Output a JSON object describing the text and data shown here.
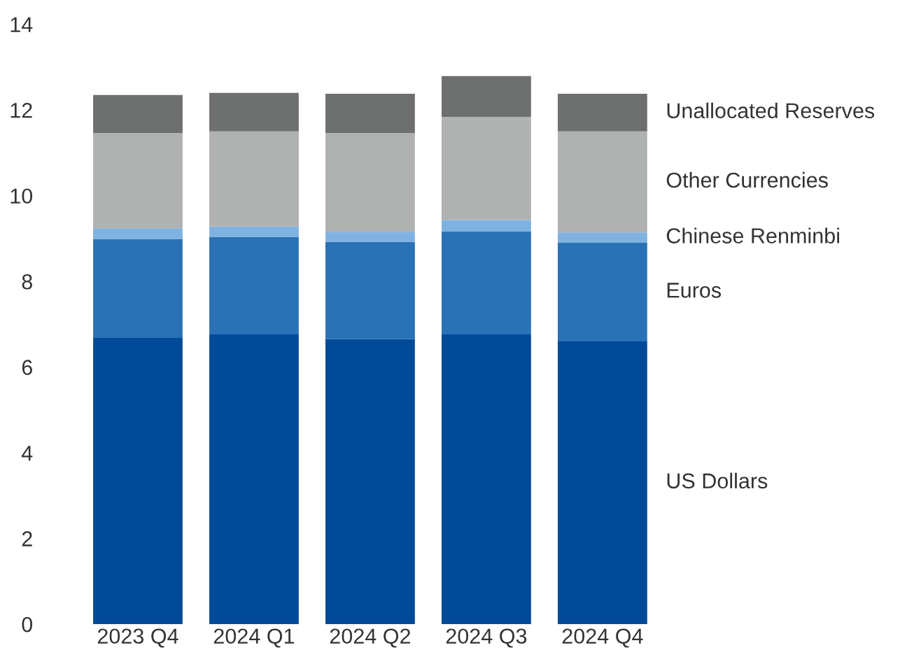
{
  "chart_data": {
    "type": "bar",
    "stacked": true,
    "categories": [
      "2023 Q4",
      "2024 Q1",
      "2024 Q2",
      "2024 Q3",
      "2024 Q4"
    ],
    "series": [
      {
        "name": "US Dollars",
        "color": "#004a98",
        "values": [
          6.68,
          6.76,
          6.65,
          6.76,
          6.6
        ]
      },
      {
        "name": "Euros",
        "color": "#2a72b5",
        "values": [
          2.31,
          2.28,
          2.27,
          2.41,
          2.3
        ]
      },
      {
        "name": "Chinese Renminbi",
        "color": "#7fb2e0",
        "values": [
          0.25,
          0.24,
          0.24,
          0.26,
          0.24
        ]
      },
      {
        "name": "Other Currencies",
        "color": "#b0b1b1",
        "values": [
          2.22,
          2.22,
          2.3,
          2.41,
          2.36
        ]
      },
      {
        "name": "Unallocated Reserves",
        "color": "#6e6f6f",
        "values": [
          0.89,
          0.9,
          0.92,
          0.95,
          0.88
        ]
      }
    ],
    "ylim": [
      0,
      14
    ],
    "yticks": [
      0,
      2,
      4,
      6,
      8,
      10,
      12,
      14
    ],
    "grid": false,
    "legend": false
  }
}
